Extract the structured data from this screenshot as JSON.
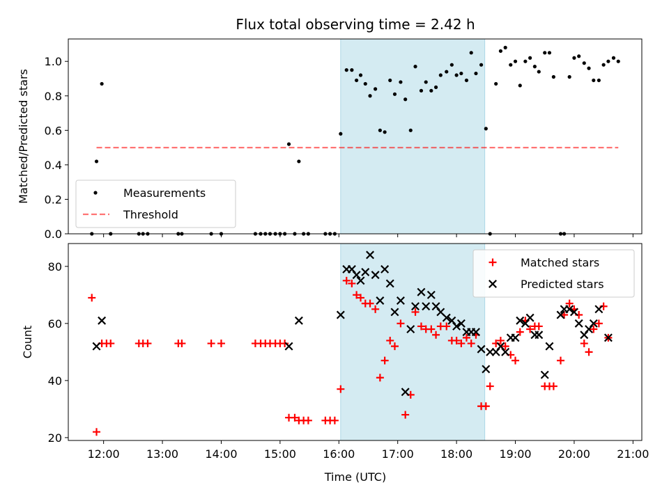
{
  "figure": {
    "title": "Flux total observing time = 2.42 h",
    "xlabel": "Time (UTC)"
  },
  "colors": {
    "shade": "#add8e6",
    "measurement": "#000000",
    "threshold": "#ff0000",
    "matched": "#ff0000",
    "predicted": "#000000"
  },
  "chart_data": [
    {
      "type": "scatter",
      "ylabel": "Matched/Predicted stars",
      "xlim": [
        11.4,
        21.15
      ],
      "ylim": [
        0,
        1.13
      ],
      "xticks": [
        "12:00",
        "13:00",
        "14:00",
        "15:00",
        "16:00",
        "17:00",
        "18:00",
        "19:00",
        "20:00",
        "21:00"
      ],
      "xtick_values": [
        12,
        13,
        14,
        15,
        16,
        17,
        18,
        19,
        20,
        21
      ],
      "yticks": [
        "0.0",
        "0.2",
        "0.4",
        "0.6",
        "0.8",
        "1.0"
      ],
      "ytick_values": [
        0,
        0.2,
        0.4,
        0.6,
        0.8,
        1.0
      ],
      "shaded_span": [
        16.03,
        18.48
      ],
      "legend_position": "lower-left",
      "series": [
        {
          "name": "Measurements",
          "marker": "dot",
          "points": [
            [
              11.8,
              0
            ],
            [
              11.88,
              0.42
            ],
            [
              11.97,
              0.87
            ],
            [
              12.12,
              0
            ],
            [
              12.6,
              0
            ],
            [
              12.67,
              0
            ],
            [
              12.75,
              0
            ],
            [
              13.27,
              0
            ],
            [
              13.33,
              0
            ],
            [
              13.83,
              0
            ],
            [
              14.0,
              0
            ],
            [
              14.58,
              0
            ],
            [
              14.67,
              0
            ],
            [
              14.75,
              0
            ],
            [
              14.83,
              0
            ],
            [
              14.92,
              0
            ],
            [
              15.0,
              0
            ],
            [
              15.08,
              0
            ],
            [
              15.15,
              0.52
            ],
            [
              15.25,
              0
            ],
            [
              15.32,
              0.42
            ],
            [
              15.4,
              0
            ],
            [
              15.48,
              0
            ],
            [
              15.77,
              0
            ],
            [
              15.85,
              0
            ],
            [
              15.93,
              0
            ],
            [
              16.03,
              0.58
            ],
            [
              16.13,
              0.95
            ],
            [
              16.22,
              0.95
            ],
            [
              16.3,
              0.89
            ],
            [
              16.37,
              0.92
            ],
            [
              16.45,
              0.87
            ],
            [
              16.53,
              0.8
            ],
            [
              16.62,
              0.84
            ],
            [
              16.7,
              0.6
            ],
            [
              16.78,
              0.59
            ],
            [
              16.87,
              0.89
            ],
            [
              16.95,
              0.81
            ],
            [
              17.05,
              0.88
            ],
            [
              17.13,
              0.78
            ],
            [
              17.22,
              0.6
            ],
            [
              17.3,
              0.97
            ],
            [
              17.4,
              0.83
            ],
            [
              17.48,
              0.88
            ],
            [
              17.57,
              0.83
            ],
            [
              17.65,
              0.85
            ],
            [
              17.73,
              0.92
            ],
            [
              17.83,
              0.94
            ],
            [
              17.92,
              0.98
            ],
            [
              18.0,
              0.92
            ],
            [
              18.08,
              0.93
            ],
            [
              18.17,
              0.89
            ],
            [
              18.25,
              1.05
            ],
            [
              18.33,
              0.93
            ],
            [
              18.42,
              0.98
            ],
            [
              18.5,
              0.61
            ],
            [
              18.57,
              0
            ],
            [
              18.67,
              0.87
            ],
            [
              18.75,
              1.06
            ],
            [
              18.83,
              1.08
            ],
            [
              18.92,
              0.98
            ],
            [
              19.0,
              1.0
            ],
            [
              19.08,
              0.86
            ],
            [
              19.17,
              1.0
            ],
            [
              19.25,
              1.02
            ],
            [
              19.33,
              0.97
            ],
            [
              19.4,
              0.94
            ],
            [
              19.5,
              1.05
            ],
            [
              19.58,
              1.05
            ],
            [
              19.65,
              0.91
            ],
            [
              19.77,
              0
            ],
            [
              19.83,
              0
            ],
            [
              19.92,
              0.91
            ],
            [
              20.0,
              1.02
            ],
            [
              20.08,
              1.03
            ],
            [
              20.17,
              0.99
            ],
            [
              20.25,
              0.96
            ],
            [
              20.33,
              0.89
            ],
            [
              20.42,
              0.89
            ],
            [
              20.5,
              0.98
            ],
            [
              20.58,
              1.0
            ],
            [
              20.67,
              1.02
            ],
            [
              20.75,
              1.0
            ]
          ]
        },
        {
          "name": "Threshold",
          "line": "dashed",
          "points": [
            [
              11.88,
              0.5
            ],
            [
              20.75,
              0.5
            ]
          ]
        }
      ]
    },
    {
      "type": "scatter",
      "ylabel": "Count",
      "xlim": [
        11.4,
        21.15
      ],
      "ylim": [
        19,
        88
      ],
      "xticks": [
        "12:00",
        "13:00",
        "14:00",
        "15:00",
        "16:00",
        "17:00",
        "18:00",
        "19:00",
        "20:00",
        "21:00"
      ],
      "xtick_values": [
        12,
        13,
        14,
        15,
        16,
        17,
        18,
        19,
        20,
        21
      ],
      "yticks": [
        "20",
        "40",
        "60",
        "80"
      ],
      "ytick_values": [
        20,
        40,
        60,
        80
      ],
      "shaded_span": [
        16.03,
        18.48
      ],
      "legend_position": "upper-right",
      "series": [
        {
          "name": "Matched stars",
          "marker": "plus",
          "points": [
            [
              11.8,
              69
            ],
            [
              11.88,
              22
            ],
            [
              11.97,
              53
            ],
            [
              12.05,
              53
            ],
            [
              12.12,
              53
            ],
            [
              12.6,
              53
            ],
            [
              12.67,
              53
            ],
            [
              12.75,
              53
            ],
            [
              13.27,
              53
            ],
            [
              13.33,
              53
            ],
            [
              13.83,
              53
            ],
            [
              14.0,
              53
            ],
            [
              14.58,
              53
            ],
            [
              14.67,
              53
            ],
            [
              14.75,
              53
            ],
            [
              14.83,
              53
            ],
            [
              14.92,
              53
            ],
            [
              15.0,
              53
            ],
            [
              15.08,
              53
            ],
            [
              15.15,
              27
            ],
            [
              15.25,
              27
            ],
            [
              15.32,
              26
            ],
            [
              15.4,
              26
            ],
            [
              15.48,
              26
            ],
            [
              15.77,
              26
            ],
            [
              15.85,
              26
            ],
            [
              15.93,
              26
            ],
            [
              16.03,
              37
            ],
            [
              16.13,
              75
            ],
            [
              16.22,
              74
            ],
            [
              16.3,
              70
            ],
            [
              16.37,
              69
            ],
            [
              16.45,
              67
            ],
            [
              16.53,
              67
            ],
            [
              16.62,
              65
            ],
            [
              16.7,
              41
            ],
            [
              16.78,
              47
            ],
            [
              16.87,
              54
            ],
            [
              16.95,
              52
            ],
            [
              17.05,
              60
            ],
            [
              17.13,
              28
            ],
            [
              17.22,
              35
            ],
            [
              17.3,
              64
            ],
            [
              17.4,
              59
            ],
            [
              17.48,
              58
            ],
            [
              17.57,
              58
            ],
            [
              17.65,
              56
            ],
            [
              17.73,
              59
            ],
            [
              17.83,
              59
            ],
            [
              17.92,
              54
            ],
            [
              18.0,
              54
            ],
            [
              18.08,
              53
            ],
            [
              18.17,
              55
            ],
            [
              18.25,
              53
            ],
            [
              18.33,
              56
            ],
            [
              18.42,
              31
            ],
            [
              18.5,
              31
            ],
            [
              18.57,
              38
            ],
            [
              18.67,
              53
            ],
            [
              18.75,
              54
            ],
            [
              18.83,
              52
            ],
            [
              18.92,
              49
            ],
            [
              19.0,
              47
            ],
            [
              19.08,
              57
            ],
            [
              19.17,
              61
            ],
            [
              19.25,
              58
            ],
            [
              19.33,
              59
            ],
            [
              19.4,
              59
            ],
            [
              19.5,
              38
            ],
            [
              19.58,
              38
            ],
            [
              19.65,
              38
            ],
            [
              19.77,
              47
            ],
            [
              19.83,
              63
            ],
            [
              19.92,
              67
            ],
            [
              20.0,
              65
            ],
            [
              20.08,
              63
            ],
            [
              20.17,
              53
            ],
            [
              20.25,
              50
            ],
            [
              20.33,
              58
            ],
            [
              20.42,
              60
            ],
            [
              20.5,
              66
            ],
            [
              20.58,
              55
            ]
          ]
        },
        {
          "name": "Predicted stars",
          "marker": "x",
          "points": [
            [
              11.88,
              52
            ],
            [
              11.97,
              61
            ],
            [
              15.15,
              52
            ],
            [
              15.32,
              61
            ],
            [
              16.03,
              63
            ],
            [
              16.13,
              79
            ],
            [
              16.22,
              79
            ],
            [
              16.3,
              77
            ],
            [
              16.37,
              75
            ],
            [
              16.45,
              78
            ],
            [
              16.53,
              84
            ],
            [
              16.62,
              77
            ],
            [
              16.7,
              68
            ],
            [
              16.78,
              79
            ],
            [
              16.87,
              74
            ],
            [
              16.95,
              64
            ],
            [
              17.05,
              68
            ],
            [
              17.13,
              36
            ],
            [
              17.22,
              58
            ],
            [
              17.3,
              66
            ],
            [
              17.4,
              71
            ],
            [
              17.48,
              66
            ],
            [
              17.57,
              70
            ],
            [
              17.65,
              66
            ],
            [
              17.73,
              64
            ],
            [
              17.83,
              62
            ],
            [
              17.92,
              61
            ],
            [
              18.0,
              59
            ],
            [
              18.08,
              60
            ],
            [
              18.17,
              57
            ],
            [
              18.25,
              57
            ],
            [
              18.33,
              57
            ],
            [
              18.42,
              51
            ],
            [
              18.5,
              44
            ],
            [
              18.57,
              50
            ],
            [
              18.67,
              50
            ],
            [
              18.75,
              52
            ],
            [
              18.83,
              50
            ],
            [
              18.92,
              55
            ],
            [
              19.0,
              55
            ],
            [
              19.08,
              61
            ],
            [
              19.17,
              60
            ],
            [
              19.25,
              62
            ],
            [
              19.33,
              56
            ],
            [
              19.4,
              56
            ],
            [
              19.5,
              42
            ],
            [
              19.58,
              52
            ],
            [
              19.77,
              63
            ],
            [
              19.83,
              65
            ],
            [
              19.92,
              65
            ],
            [
              20.0,
              64
            ],
            [
              20.08,
              60
            ],
            [
              20.17,
              56
            ],
            [
              20.25,
              58
            ],
            [
              20.33,
              60
            ],
            [
              20.42,
              65
            ],
            [
              20.58,
              55
            ]
          ]
        }
      ]
    }
  ]
}
